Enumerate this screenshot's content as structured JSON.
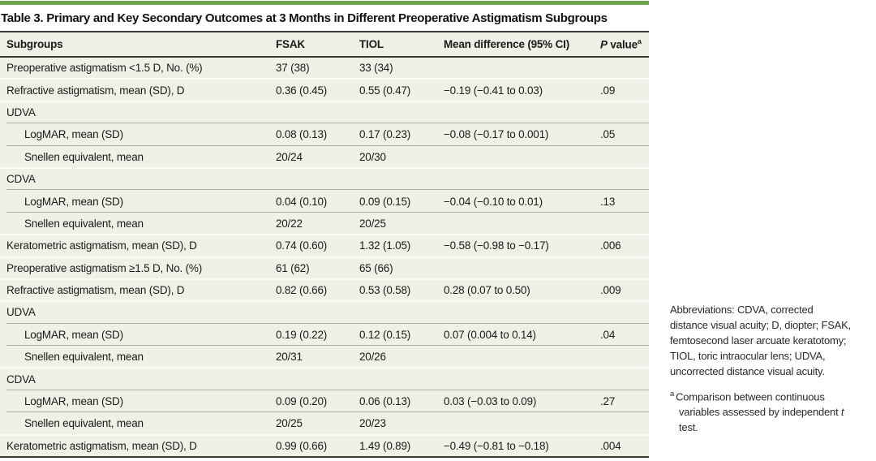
{
  "accent_color": "#6ca64c",
  "title": "Table 3. Primary and Key Secondary Outcomes at 3 Months in Different Preoperative Astigmatism Subgroups",
  "table": {
    "header": {
      "subgroups": "Subgroups",
      "fsak": "FSAK",
      "tiol": "TIOL",
      "mean_diff": "Mean difference (95% CI)",
      "p_italic": "P",
      "p_rest": " value",
      "p_sup": "a"
    },
    "rows": [
      {
        "label": "Preoperative astigmatism <1.5 D, No. (%)",
        "fsak": "37 (38)",
        "tiol": "33 (34)",
        "diff": "",
        "p": "",
        "indent": false,
        "sep": "none"
      },
      {
        "label": "Refractive astigmatism, mean (SD), D",
        "fsak": "0.36 (0.45)",
        "tiol": "0.55 (0.47)",
        "diff": "−0.19 (−0.41 to 0.03)",
        "p": ".09",
        "indent": false,
        "sep": "full"
      },
      {
        "label": "UDVA",
        "fsak": "",
        "tiol": "",
        "diff": "",
        "p": "",
        "indent": false,
        "sep": "full"
      },
      {
        "label": "LogMAR, mean (SD)",
        "fsak": "0.08 (0.13)",
        "tiol": "0.17 (0.23)",
        "diff": "−0.08 (−0.17 to 0.001)",
        "p": ".05",
        "indent": true,
        "sep": "indent"
      },
      {
        "label": "Snellen equivalent, mean",
        "fsak": "20/24",
        "tiol": "20/30",
        "diff": "",
        "p": "",
        "indent": true,
        "sep": "indent"
      },
      {
        "label": "CDVA",
        "fsak": "",
        "tiol": "",
        "diff": "",
        "p": "",
        "indent": false,
        "sep": "full"
      },
      {
        "label": "LogMAR, mean (SD)",
        "fsak": "0.04 (0.10)",
        "tiol": "0.09 (0.15)",
        "diff": "−0.04 (−0.10 to 0.01)",
        "p": ".13",
        "indent": true,
        "sep": "indent"
      },
      {
        "label": "Snellen equivalent, mean",
        "fsak": "20/22",
        "tiol": "20/25",
        "diff": "",
        "p": "",
        "indent": true,
        "sep": "indent"
      },
      {
        "label": "Keratometric astigmatism, mean (SD), D",
        "fsak": "0.74 (0.60)",
        "tiol": "1.32 (1.05)",
        "diff": "−0.58 (−0.98 to −0.17)",
        "p": ".006",
        "indent": false,
        "sep": "full"
      },
      {
        "label": "Preoperative astigmatism ≥1.5 D, No. (%)",
        "fsak": "61 (62)",
        "tiol": "65 (66)",
        "diff": "",
        "p": "",
        "indent": false,
        "sep": "full"
      },
      {
        "label": "Refractive astigmatism, mean (SD), D",
        "fsak": "0.82 (0.66)",
        "tiol": "0.53 (0.58)",
        "diff": "0.28 (0.07 to 0.50)",
        "p": ".009",
        "indent": false,
        "sep": "full"
      },
      {
        "label": "UDVA",
        "fsak": "",
        "tiol": "",
        "diff": "",
        "p": "",
        "indent": false,
        "sep": "full"
      },
      {
        "label": "LogMAR, mean (SD)",
        "fsak": "0.19 (0.22)",
        "tiol": "0.12 (0.15)",
        "diff": "0.07 (0.004 to 0.14)",
        "p": ".04",
        "indent": true,
        "sep": "indent"
      },
      {
        "label": "Snellen equivalent, mean",
        "fsak": "20/31",
        "tiol": "20/26",
        "diff": "",
        "p": "",
        "indent": true,
        "sep": "indent"
      },
      {
        "label": "CDVA",
        "fsak": "",
        "tiol": "",
        "diff": "",
        "p": "",
        "indent": false,
        "sep": "full"
      },
      {
        "label": "LogMAR, mean (SD)",
        "fsak": "0.09 (0.20)",
        "tiol": "0.06 (0.13)",
        "diff": "0.03 (−0.03 to 0.09)",
        "p": ".27",
        "indent": true,
        "sep": "indent"
      },
      {
        "label": "Snellen equivalent, mean",
        "fsak": "20/25",
        "tiol": "20/23",
        "diff": "",
        "p": "",
        "indent": true,
        "sep": "indent"
      },
      {
        "label": "Keratometric astigmatism, mean (SD), D",
        "fsak": "0.99 (0.66)",
        "tiol": "1.49 (0.89)",
        "diff": "−0.49 (−0.81 to −0.18)",
        "p": ".004",
        "indent": false,
        "sep": "full"
      }
    ]
  },
  "notes": {
    "abbreviations": "Abbreviations: CDVA, corrected distance visual acuity; D, diopter; FSAK, femtosecond laser arcuate keratotomy; TIOL, toric intraocular lens; UDVA, uncorrected distance visual acuity.",
    "footnote_marker": "a",
    "footnote_pre": "Comparison between continuous variables assessed by independent ",
    "footnote_italic": "t",
    "footnote_post": " test."
  }
}
